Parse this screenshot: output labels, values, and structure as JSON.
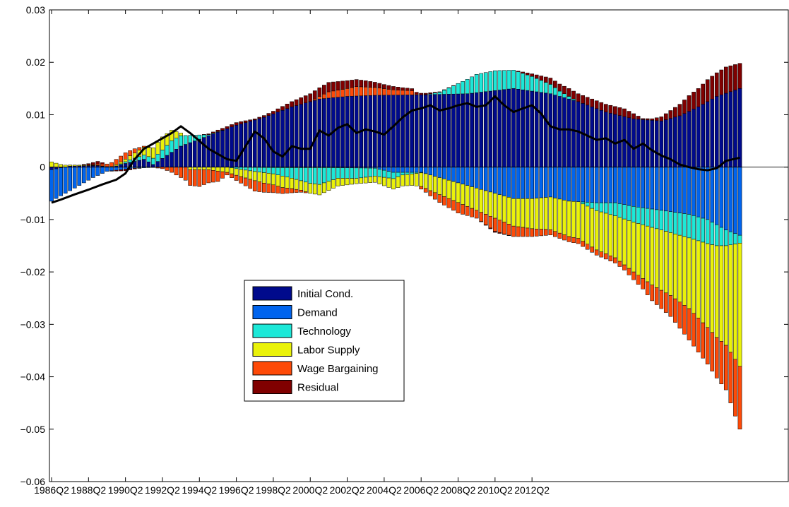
{
  "chart_data": {
    "type": "bar",
    "stacked": true,
    "x_start": "1986Q2",
    "x_end": "2013Q3",
    "x_tick_labels": [
      "1986Q2",
      "1988Q2",
      "1990Q2",
      "1992Q2",
      "1994Q2",
      "1996Q2",
      "1998Q2",
      "2000Q2",
      "2002Q2",
      "2004Q2",
      "2006Q2",
      "2008Q2",
      "2010Q2",
      "2012Q2"
    ],
    "ylim": [
      -0.06,
      0.03
    ],
    "y_ticks": [
      -0.06,
      -0.05,
      -0.04,
      -0.03,
      -0.02,
      -0.01,
      0,
      0.01,
      0.02,
      0.03
    ],
    "y_tick_labels": [
      "−0.06",
      "−0.05",
      "−0.04",
      "−0.03",
      "−0.02",
      "−0.01",
      "0",
      "0.01",
      "0.02",
      "0.03"
    ],
    "legend_position": "lower-left inside plot",
    "series": [
      {
        "name": "Initial Cond.",
        "color": "#000a8c",
        "knots": [
          [
            0,
            -0.0005
          ],
          [
            4,
            0.0002
          ],
          [
            10,
            0.0003
          ],
          [
            13,
            0.0
          ],
          [
            16,
            0.0007
          ],
          [
            20,
            0.0015
          ],
          [
            22,
            0.0005
          ],
          [
            28,
            0.004
          ],
          [
            34,
            0.006
          ],
          [
            40,
            0.008
          ],
          [
            46,
            0.0095
          ],
          [
            52,
            0.0115
          ],
          [
            58,
            0.013
          ],
          [
            64,
            0.0135
          ],
          [
            70,
            0.0137
          ],
          [
            80,
            0.0138
          ],
          [
            90,
            0.014
          ],
          [
            100,
            0.015
          ],
          [
            108,
            0.014
          ],
          [
            114,
            0.0125
          ],
          [
            120,
            0.0105
          ],
          [
            126,
            0.0092
          ],
          [
            132,
            0.0088
          ],
          [
            136,
            0.0098
          ],
          [
            140,
            0.0115
          ],
          [
            144,
            0.0135
          ],
          [
            149,
            0.015
          ]
        ]
      },
      {
        "name": "Demand",
        "color": "#0064ee",
        "knots": [
          [
            0,
            -0.006
          ],
          [
            3,
            -0.005
          ],
          [
            6,
            -0.0035
          ],
          [
            9,
            -0.002
          ],
          [
            12,
            -0.0008
          ],
          [
            15,
            -0.0005
          ],
          [
            18,
            -0.0002
          ],
          [
            24,
            0.0
          ],
          [
            32,
            0.0
          ],
          [
            40,
            0.0
          ],
          [
            50,
            -0.0001
          ],
          [
            60,
            -0.0001
          ],
          [
            70,
            -0.0002
          ],
          [
            74,
            -0.001
          ],
          [
            80,
            -0.001
          ],
          [
            88,
            -0.003
          ],
          [
            96,
            -0.005
          ],
          [
            100,
            -0.006
          ],
          [
            104,
            -0.006
          ],
          [
            108,
            -0.0057
          ],
          [
            112,
            -0.0065
          ],
          [
            118,
            -0.0068
          ],
          [
            122,
            -0.0068
          ],
          [
            126,
            -0.0075
          ],
          [
            130,
            -0.008
          ],
          [
            134,
            -0.0085
          ],
          [
            138,
            -0.009
          ],
          [
            142,
            -0.01
          ],
          [
            146,
            -0.012
          ],
          [
            149,
            -0.013
          ]
        ]
      },
      {
        "name": "Technology",
        "color": "#1ce8d8",
        "knots": [
          [
            0,
            0.0
          ],
          [
            14,
            0.0
          ],
          [
            17,
            0.0005
          ],
          [
            20,
            0.0008
          ],
          [
            22,
            0.0012
          ],
          [
            24,
            0.0016
          ],
          [
            26,
            0.0022
          ],
          [
            28,
            0.002
          ],
          [
            30,
            0.0014
          ],
          [
            32,
            0.0008
          ],
          [
            34,
            0.0002
          ],
          [
            38,
            0.0
          ],
          [
            40,
            -0.0003
          ],
          [
            44,
            -0.0008
          ],
          [
            48,
            -0.0012
          ],
          [
            52,
            -0.002
          ],
          [
            56,
            -0.003
          ],
          [
            58,
            -0.0032
          ],
          [
            62,
            -0.002
          ],
          [
            66,
            -0.002
          ],
          [
            70,
            -0.0015
          ],
          [
            74,
            -0.0012
          ],
          [
            76,
            -0.0005
          ],
          [
            80,
            -0.0001
          ],
          [
            84,
            0.0004
          ],
          [
            88,
            0.002
          ],
          [
            92,
            0.0035
          ],
          [
            96,
            0.0038
          ],
          [
            100,
            0.0035
          ],
          [
            104,
            0.0028
          ],
          [
            108,
            0.0018
          ],
          [
            110,
            0.001
          ],
          [
            114,
            0.0
          ],
          [
            118,
            -0.0015
          ],
          [
            122,
            -0.0025
          ],
          [
            126,
            -0.003
          ],
          [
            130,
            -0.0035
          ],
          [
            134,
            -0.004
          ],
          [
            138,
            -0.0045
          ],
          [
            142,
            -0.0046
          ],
          [
            144,
            -0.004
          ],
          [
            146,
            -0.003
          ],
          [
            148,
            -0.002
          ],
          [
            149,
            -0.0015
          ]
        ]
      },
      {
        "name": "Labor Supply",
        "color": "#eaf20a",
        "knots": [
          [
            0,
            0.001
          ],
          [
            2,
            0.0005
          ],
          [
            4,
            0.0002
          ],
          [
            8,
            0.0001
          ],
          [
            12,
            0.0
          ],
          [
            16,
            0.0005
          ],
          [
            20,
            0.0015
          ],
          [
            24,
            0.0025
          ],
          [
            26,
            0.002
          ],
          [
            28,
            0.0005
          ],
          [
            30,
            -0.0005
          ],
          [
            34,
            -0.0005
          ],
          [
            38,
            -0.001
          ],
          [
            42,
            -0.0015
          ],
          [
            46,
            -0.002
          ],
          [
            50,
            -0.0022
          ],
          [
            54,
            -0.0018
          ],
          [
            58,
            -0.002
          ],
          [
            62,
            -0.0015
          ],
          [
            66,
            -0.001
          ],
          [
            70,
            -0.0012
          ],
          [
            74,
            -0.002
          ],
          [
            78,
            -0.0022
          ],
          [
            82,
            -0.003
          ],
          [
            86,
            -0.0035
          ],
          [
            90,
            -0.004
          ],
          [
            94,
            -0.0045
          ],
          [
            98,
            -0.005
          ],
          [
            102,
            -0.0055
          ],
          [
            106,
            -0.006
          ],
          [
            110,
            -0.0065
          ],
          [
            114,
            -0.007
          ],
          [
            118,
            -0.0075
          ],
          [
            122,
            -0.008
          ],
          [
            126,
            -0.0095
          ],
          [
            130,
            -0.011
          ],
          [
            134,
            -0.012
          ],
          [
            138,
            -0.0135
          ],
          [
            142,
            -0.016
          ],
          [
            146,
            -0.019
          ],
          [
            149,
            -0.0235
          ]
        ]
      },
      {
        "name": "Wage Bargaining",
        "color": "#fe4a08",
        "knots": [
          [
            0,
            0.0
          ],
          [
            8,
            0.0
          ],
          [
            12,
            0.0005
          ],
          [
            14,
            0.001
          ],
          [
            16,
            0.0012
          ],
          [
            18,
            0.0008
          ],
          [
            20,
            0.0002
          ],
          [
            22,
            0.0
          ],
          [
            24,
            -0.0003
          ],
          [
            26,
            -0.001
          ],
          [
            28,
            -0.002
          ],
          [
            30,
            -0.003
          ],
          [
            32,
            -0.0032
          ],
          [
            34,
            -0.0025
          ],
          [
            36,
            -0.002
          ],
          [
            38,
            -0.0005
          ],
          [
            40,
            -0.001
          ],
          [
            44,
            -0.002
          ],
          [
            48,
            -0.0015
          ],
          [
            52,
            -0.0008
          ],
          [
            56,
            0.0
          ],
          [
            58,
            0.0005
          ],
          [
            60,
            0.0012
          ],
          [
            64,
            0.0015
          ],
          [
            66,
            0.0018
          ],
          [
            70,
            0.0015
          ],
          [
            74,
            0.001
          ],
          [
            78,
            0.0008
          ],
          [
            80,
            -0.0005
          ],
          [
            84,
            -0.0015
          ],
          [
            88,
            -0.002
          ],
          [
            92,
            -0.0015
          ],
          [
            96,
            -0.0025
          ],
          [
            100,
            -0.002
          ],
          [
            104,
            -0.0015
          ],
          [
            108,
            -0.001
          ],
          [
            112,
            -0.001
          ],
          [
            116,
            -0.001
          ],
          [
            120,
            -0.001
          ],
          [
            124,
            -0.001
          ],
          [
            128,
            -0.002
          ],
          [
            130,
            -0.003
          ],
          [
            134,
            -0.004
          ],
          [
            138,
            -0.006
          ],
          [
            142,
            -0.007
          ],
          [
            146,
            -0.0085
          ],
          [
            149,
            -0.012
          ]
        ]
      },
      {
        "name": "Residual",
        "color": "#800000",
        "knots": [
          [
            0,
            0.0
          ],
          [
            6,
            0.0
          ],
          [
            8,
            0.0003
          ],
          [
            10,
            0.0005
          ],
          [
            12,
            0.0
          ],
          [
            16,
            -0.0003
          ],
          [
            20,
            0.0
          ],
          [
            24,
            0.0
          ],
          [
            28,
            0.0
          ],
          [
            32,
            0.0
          ],
          [
            36,
            0.0003
          ],
          [
            40,
            0.0005
          ],
          [
            44,
            0.0002
          ],
          [
            48,
            0.0005
          ],
          [
            52,
            0.001
          ],
          [
            56,
            0.0015
          ],
          [
            60,
            0.0018
          ],
          [
            64,
            0.0015
          ],
          [
            68,
            0.0012
          ],
          [
            72,
            0.0008
          ],
          [
            76,
            0.0005
          ],
          [
            80,
            0.0003
          ],
          [
            84,
            0.0001
          ],
          [
            88,
            0.0
          ],
          [
            92,
            0.0
          ],
          [
            96,
            -0.0002
          ],
          [
            100,
            0.0
          ],
          [
            104,
            0.0005
          ],
          [
            108,
            0.0012
          ],
          [
            112,
            0.0015
          ],
          [
            116,
            0.0015
          ],
          [
            120,
            0.0015
          ],
          [
            124,
            0.0015
          ],
          [
            126,
            0.001
          ],
          [
            128,
            0.0002
          ],
          [
            130,
            0.0003
          ],
          [
            132,
            0.0008
          ],
          [
            134,
            0.0015
          ],
          [
            136,
            0.0022
          ],
          [
            138,
            0.003
          ],
          [
            140,
            0.0035
          ],
          [
            142,
            0.0042
          ],
          [
            144,
            0.0045
          ],
          [
            146,
            0.005
          ],
          [
            149,
            0.0048
          ]
        ]
      }
    ],
    "line": {
      "name": "",
      "color": "#000000",
      "points": [
        [
          0,
          -0.0068
        ],
        [
          2,
          -0.0062
        ],
        [
          5,
          -0.0052
        ],
        [
          8,
          -0.0043
        ],
        [
          11,
          -0.0033
        ],
        [
          14,
          -0.0024
        ],
        [
          16,
          -0.0012
        ],
        [
          18,
          0.0015
        ],
        [
          20,
          0.0035
        ],
        [
          22,
          0.0045
        ],
        [
          24,
          0.0055
        ],
        [
          26,
          0.0065
        ],
        [
          28,
          0.0078
        ],
        [
          30,
          0.0065
        ],
        [
          32,
          0.005
        ],
        [
          34,
          0.0035
        ],
        [
          36,
          0.0025
        ],
        [
          38,
          0.0015
        ],
        [
          40,
          0.0012
        ],
        [
          42,
          0.004
        ],
        [
          44,
          0.0068
        ],
        [
          46,
          0.0055
        ],
        [
          48,
          0.003
        ],
        [
          50,
          0.002
        ],
        [
          52,
          0.004
        ],
        [
          54,
          0.0035
        ],
        [
          56,
          0.0035
        ],
        [
          58,
          0.007
        ],
        [
          60,
          0.006
        ],
        [
          62,
          0.0075
        ],
        [
          64,
          0.0082
        ],
        [
          66,
          0.0065
        ],
        [
          68,
          0.0072
        ],
        [
          70,
          0.0068
        ],
        [
          72,
          0.0062
        ],
        [
          74,
          0.0078
        ],
        [
          76,
          0.0095
        ],
        [
          78,
          0.0108
        ],
        [
          80,
          0.0112
        ],
        [
          82,
          0.0118
        ],
        [
          84,
          0.0108
        ],
        [
          86,
          0.0112
        ],
        [
          88,
          0.0118
        ],
        [
          90,
          0.0122
        ],
        [
          92,
          0.0115
        ],
        [
          94,
          0.0118
        ],
        [
          96,
          0.0135
        ],
        [
          98,
          0.0118
        ],
        [
          100,
          0.0105
        ],
        [
          102,
          0.0112
        ],
        [
          104,
          0.0118
        ],
        [
          106,
          0.0102
        ],
        [
          108,
          0.0078
        ],
        [
          110,
          0.0072
        ],
        [
          112,
          0.0072
        ],
        [
          114,
          0.0068
        ],
        [
          116,
          0.006
        ],
        [
          118,
          0.0052
        ],
        [
          120,
          0.0055
        ],
        [
          122,
          0.0045
        ],
        [
          124,
          0.0052
        ],
        [
          126,
          0.0035
        ],
        [
          128,
          0.0045
        ],
        [
          130,
          0.0032
        ],
        [
          132,
          0.0022
        ],
        [
          134,
          0.0015
        ],
        [
          136,
          0.0005
        ],
        [
          138,
          0.0
        ],
        [
          140,
          -0.0004
        ],
        [
          142,
          -0.0006
        ],
        [
          144,
          -0.0002
        ],
        [
          146,
          0.0012
        ],
        [
          149,
          0.0018
        ]
      ]
    }
  },
  "legend": {
    "title_entries": [
      "Initial Cond.",
      "Demand",
      "Technology",
      "Labor Supply",
      "Wage Bargaining",
      "Residual"
    ]
  }
}
